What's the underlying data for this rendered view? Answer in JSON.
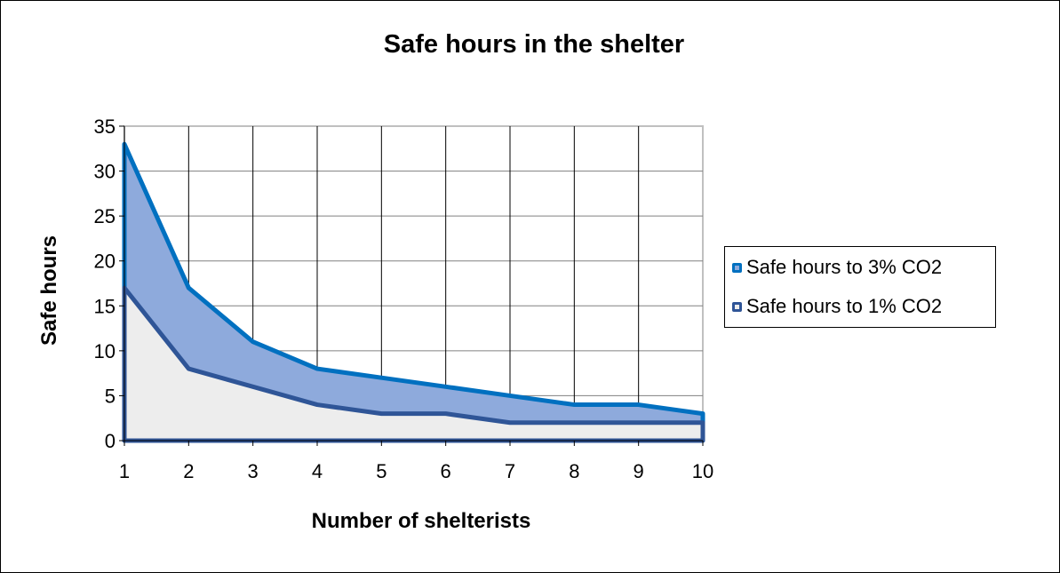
{
  "chart_data": {
    "type": "area",
    "title": "Safe hours in the shelter",
    "xlabel": "Number of shelterists",
    "ylabel": "Safe hours",
    "x": [
      1,
      2,
      3,
      4,
      5,
      6,
      7,
      8,
      9,
      10
    ],
    "ylim": [
      0,
      35
    ],
    "yticks": [
      0,
      5,
      10,
      15,
      20,
      25,
      30,
      35
    ],
    "grid": true,
    "legend_position": "right",
    "series": [
      {
        "name": "Safe hours to 3% CO2",
        "values": [
          33,
          17,
          11,
          8,
          7,
          6,
          5,
          4,
          4,
          3
        ],
        "line": "#0070c0",
        "fill": "#8eaadc"
      },
      {
        "name": "Safe hours to 1% CO2",
        "values": [
          17,
          8,
          6,
          4,
          3,
          3,
          2,
          2,
          2,
          2
        ],
        "line": "#2f5597",
        "fill": "#ededed"
      }
    ]
  }
}
